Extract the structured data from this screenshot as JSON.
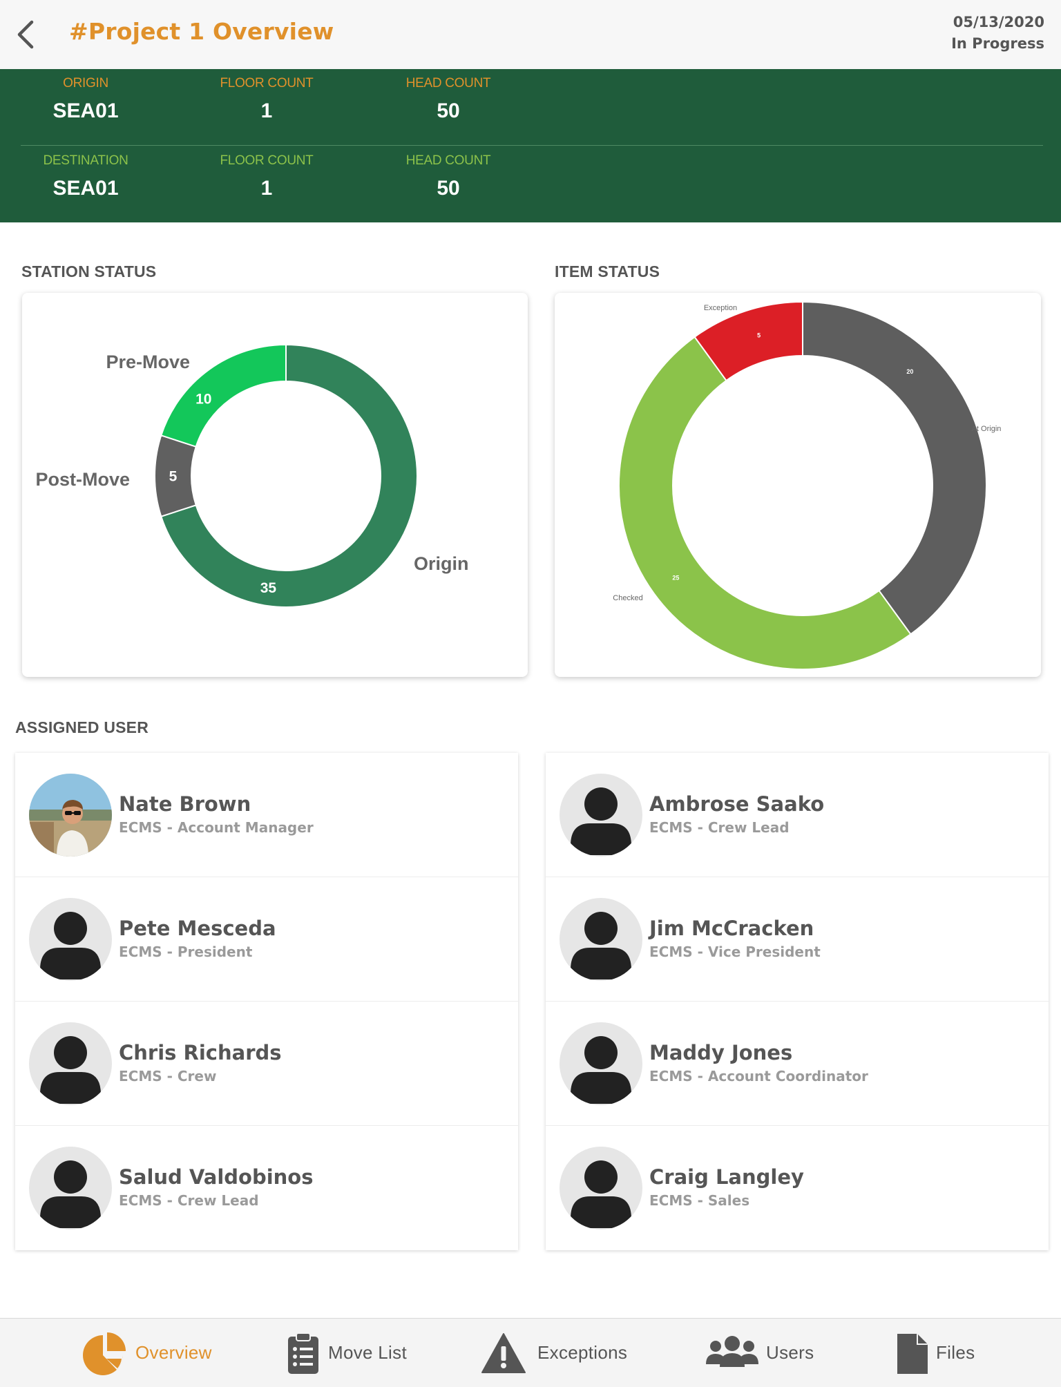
{
  "header": {
    "title": "#Project 1 Overview",
    "date": "05/13/2020",
    "status": "In Progress"
  },
  "origin": {
    "label": "ORIGIN",
    "value": "SEA01",
    "floor_label": "FLOOR COUNT",
    "floor_value": "1",
    "head_label": "HEAD COUNT",
    "head_value": "50"
  },
  "destination": {
    "label": "DESTINATION",
    "value": "SEA01",
    "floor_label": "FLOOR COUNT",
    "floor_value": "1",
    "head_label": "HEAD COUNT",
    "head_value": "50"
  },
  "sections": {
    "station_status": "STATION STATUS",
    "item_status": "ITEM STATUS",
    "assigned_user": "ASSIGNED USER"
  },
  "chart_data": [
    {
      "type": "pie",
      "variant": "donut",
      "categories": [
        "Origin",
        "Post-Move",
        "Pre-Move"
      ],
      "values": [
        35,
        5,
        10
      ],
      "colors": [
        "#31835a",
        "#606060",
        "#13c75a"
      ],
      "title": "",
      "legend": "labels-outside"
    },
    {
      "type": "pie",
      "variant": "donut",
      "categories": [
        "At Origin",
        "Checked",
        "Exception"
      ],
      "values": [
        20,
        25,
        5
      ],
      "colors": [
        "#5e5e5e",
        "#8bc34a",
        "#dc1f26"
      ],
      "title": "",
      "legend": "labels-outside"
    }
  ],
  "users": {
    "left": [
      {
        "name": "Nate Brown",
        "role": "ECMS - Account Manager",
        "avatar": "photo"
      },
      {
        "name": "Pete Mesceda",
        "role": "ECMS - President",
        "avatar": "person-icon"
      },
      {
        "name": "Chris Richards",
        "role": "ECMS - Crew",
        "avatar": "person-icon"
      },
      {
        "name": "Salud Valdobinos",
        "role": "ECMS - Crew Lead",
        "avatar": "person-icon"
      }
    ],
    "right": [
      {
        "name": "Ambrose Saako",
        "role": "ECMS - Crew Lead",
        "avatar": "person-icon"
      },
      {
        "name": "Jim McCracken",
        "role": "ECMS - Vice President",
        "avatar": "person-icon"
      },
      {
        "name": "Maddy Jones",
        "role": "ECMS - Account Coordinator",
        "avatar": "person-icon"
      },
      {
        "name": "Craig Langley",
        "role": "ECMS - Sales",
        "avatar": "person-icon"
      }
    ]
  },
  "tabs": [
    {
      "label": "Overview",
      "icon": "pie-chart-icon",
      "active": true
    },
    {
      "label": "Move List",
      "icon": "clipboard-list-icon",
      "active": false
    },
    {
      "label": "Exceptions",
      "icon": "warning-icon",
      "active": false
    },
    {
      "label": "Users",
      "icon": "users-icon",
      "active": false
    },
    {
      "label": "Files",
      "icon": "file-icon",
      "active": false
    }
  ],
  "colors": {
    "accent": "#e0912b",
    "band": "#1f5c3b",
    "lime": "#8cc24a"
  }
}
